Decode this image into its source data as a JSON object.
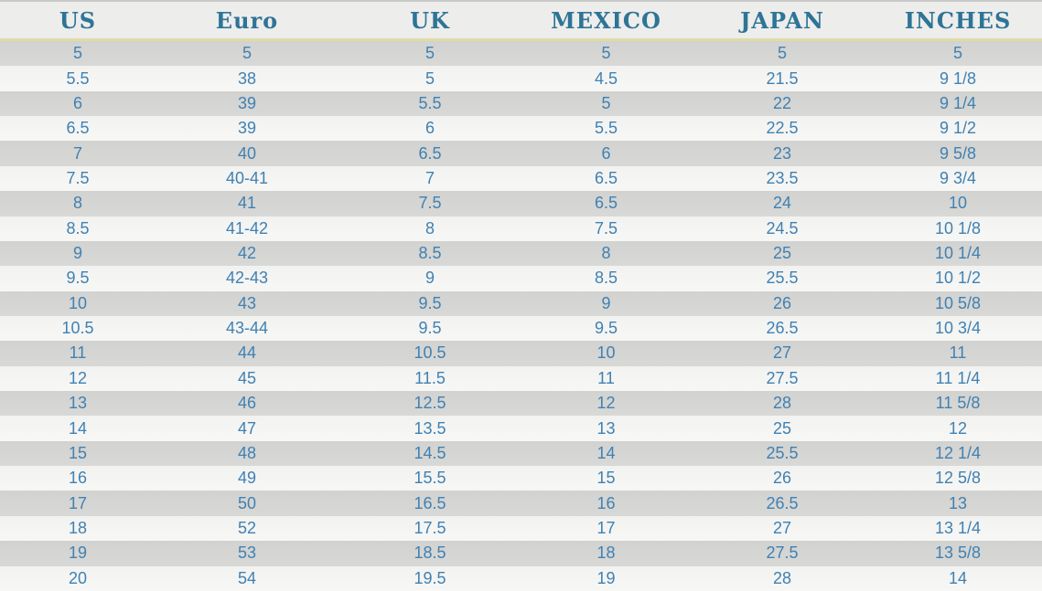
{
  "table": {
    "columns": [
      "US",
      "Euro",
      "UK",
      "MEXICO",
      "JAPAN",
      "INCHES"
    ],
    "rows": [
      [
        "5",
        "5",
        "5",
        "5",
        "5",
        "5"
      ],
      [
        "5.5",
        "38",
        "5",
        "4.5",
        "21.5",
        "9 1/8"
      ],
      [
        "6",
        "39",
        "5.5",
        "5",
        "22",
        "9 1/4"
      ],
      [
        "6.5",
        "39",
        "6",
        "5.5",
        "22.5",
        "9 1/2"
      ],
      [
        "7",
        "40",
        "6.5",
        "6",
        "23",
        "9 5/8"
      ],
      [
        "7.5",
        "40-41",
        "7",
        "6.5",
        "23.5",
        "9 3/4"
      ],
      [
        "8",
        "41",
        "7.5",
        "6.5",
        "24",
        "10"
      ],
      [
        "8.5",
        "41-42",
        "8",
        "7.5",
        "24.5",
        "10 1/8"
      ],
      [
        "9",
        "42",
        "8.5",
        "8",
        "25",
        "10 1/4"
      ],
      [
        "9.5",
        "42-43",
        "9",
        "8.5",
        "25.5",
        "10 1/2"
      ],
      [
        "10",
        "43",
        "9.5",
        "9",
        "26",
        "10 5/8"
      ],
      [
        "10.5",
        "43-44",
        "9.5",
        "9.5",
        "26.5",
        "10 3/4"
      ],
      [
        "11",
        "44",
        "10.5",
        "10",
        "27",
        "11"
      ],
      [
        "12",
        "45",
        "11.5",
        "11",
        "27.5",
        "11 1/4"
      ],
      [
        "13",
        "46",
        "12.5",
        "12",
        "28",
        "11 5/8"
      ],
      [
        "14",
        "47",
        "13.5",
        "13",
        "25",
        "12"
      ],
      [
        "15",
        "48",
        "14.5",
        "14",
        "25.5",
        "12 1/4"
      ],
      [
        "16",
        "49",
        "15.5",
        "15",
        "26",
        "12 5/8"
      ],
      [
        "17",
        "50",
        "16.5",
        "16",
        "26.5",
        "13"
      ],
      [
        "18",
        "52",
        "17.5",
        "17",
        "27",
        "13 1/4"
      ],
      [
        "19",
        "53",
        "18.5",
        "18",
        "27.5",
        "13 5/8"
      ],
      [
        "20",
        "54",
        "19.5",
        "19",
        "28",
        "14"
      ]
    ]
  },
  "chart_data": {
    "type": "table",
    "title": "",
    "columns": [
      "US",
      "Euro",
      "UK",
      "MEXICO",
      "JAPAN",
      "INCHES"
    ],
    "rows": [
      [
        "5",
        "5",
        "5",
        "5",
        "5",
        "5"
      ],
      [
        "5.5",
        "38",
        "5",
        "4.5",
        "21.5",
        "9 1/8"
      ],
      [
        "6",
        "39",
        "5.5",
        "5",
        "22",
        "9 1/4"
      ],
      [
        "6.5",
        "39",
        "6",
        "5.5",
        "22.5",
        "9 1/2"
      ],
      [
        "7",
        "40",
        "6.5",
        "6",
        "23",
        "9 5/8"
      ],
      [
        "7.5",
        "40-41",
        "7",
        "6.5",
        "23.5",
        "9 3/4"
      ],
      [
        "8",
        "41",
        "7.5",
        "6.5",
        "24",
        "10"
      ],
      [
        "8.5",
        "41-42",
        "8",
        "7.5",
        "24.5",
        "10 1/8"
      ],
      [
        "9",
        "42",
        "8.5",
        "8",
        "25",
        "10 1/4"
      ],
      [
        "9.5",
        "42-43",
        "9",
        "8.5",
        "25.5",
        "10 1/2"
      ],
      [
        "10",
        "43",
        "9.5",
        "9",
        "26",
        "10 5/8"
      ],
      [
        "10.5",
        "43-44",
        "9.5",
        "9.5",
        "26.5",
        "10 3/4"
      ],
      [
        "11",
        "44",
        "10.5",
        "10",
        "27",
        "11"
      ],
      [
        "12",
        "45",
        "11.5",
        "11",
        "27.5",
        "11 1/4"
      ],
      [
        "13",
        "46",
        "12.5",
        "12",
        "28",
        "11 5/8"
      ],
      [
        "14",
        "47",
        "13.5",
        "13",
        "25",
        "12"
      ],
      [
        "15",
        "48",
        "14.5",
        "14",
        "25.5",
        "12 1/4"
      ],
      [
        "16",
        "49",
        "15.5",
        "15",
        "26",
        "12 5/8"
      ],
      [
        "17",
        "50",
        "16.5",
        "16",
        "26.5",
        "13"
      ],
      [
        "18",
        "52",
        "17.5",
        "17",
        "27",
        "13 1/4"
      ],
      [
        "19",
        "53",
        "18.5",
        "18",
        "27.5",
        "13 5/8"
      ],
      [
        "20",
        "54",
        "19.5",
        "19",
        "28",
        "14"
      ]
    ]
  },
  "colors": {
    "header_text": "#2E7497",
    "cell_text": "#3F81B3",
    "header_bg": "#EDEDEB",
    "separator_line": "#DFDCA6",
    "row_gray": "#D5D5D3",
    "row_light": "#F4F4F2"
  }
}
